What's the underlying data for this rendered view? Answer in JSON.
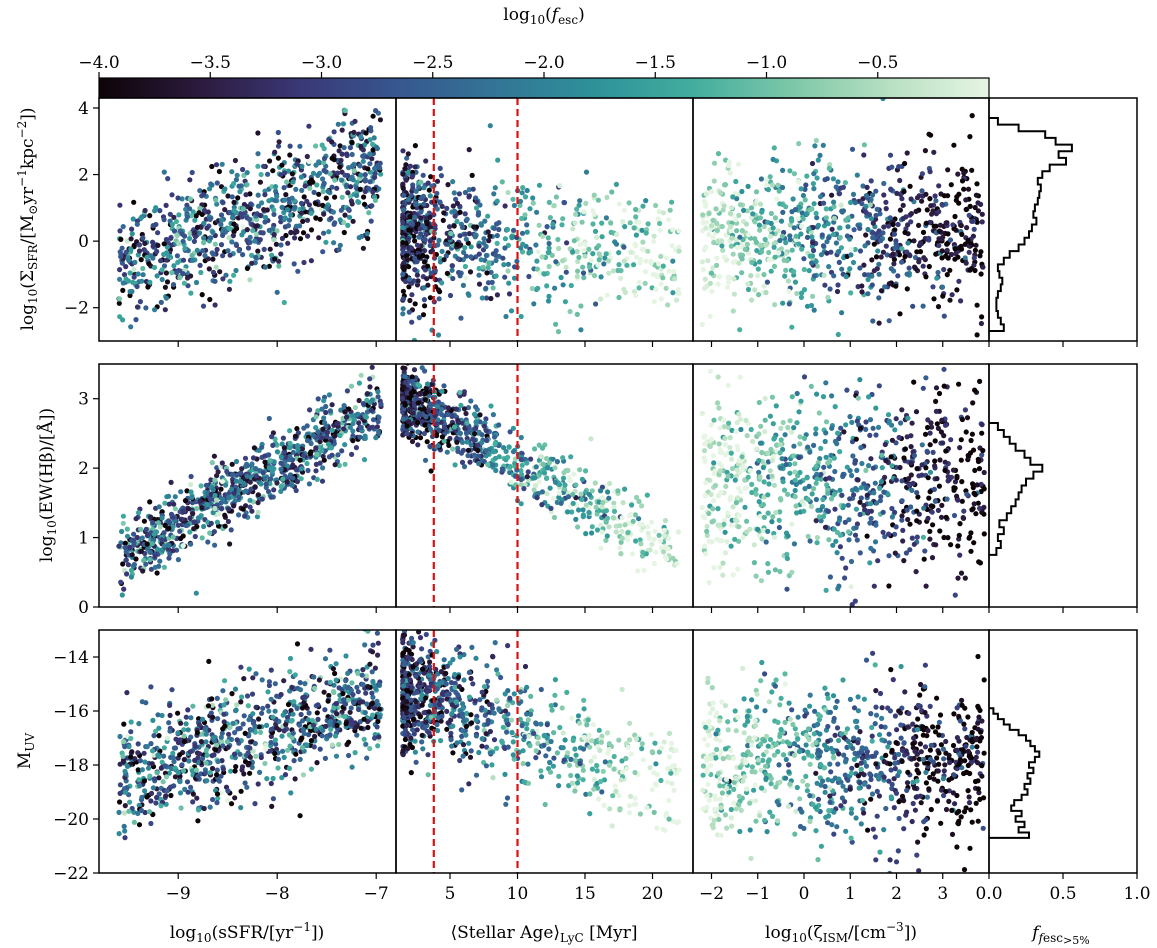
{
  "colors": {
    "colormap": [
      "#0d0408",
      "#2b1a3c",
      "#3a3775",
      "#37568f",
      "#337496",
      "#2e9199",
      "#43ad9e",
      "#7cc7a8",
      "#b8e0c2",
      "#e6f5e3"
    ],
    "ref_line": "#dd1111",
    "hist": "#000000"
  },
  "chart_data": {
    "type": "scatter",
    "colorbar": {
      "label": "log10(f_esc)",
      "range": [
        -4.0,
        0.0
      ],
      "ticks": [
        "−4.0",
        "−3.5",
        "−3.0",
        "−2.5",
        "−2.0",
        "−1.5",
        "−1.0",
        "−0.5"
      ]
    },
    "columns": [
      {
        "key": "ssfr",
        "xlabel": "log10(sSFR/[yr−1])",
        "xlim": [
          -9.8,
          -6.8
        ],
        "xticks": [
          -9,
          -8,
          -7
        ],
        "xtick_labels": [
          "−9",
          "−8",
          "−7"
        ]
      },
      {
        "key": "age",
        "xlabel": "⟨Stellar Age⟩LyC [Myr]",
        "xlim": [
          1.0,
          23.0
        ],
        "xticks": [
          5,
          10,
          15,
          20
        ],
        "xtick_labels": [
          "5",
          "10",
          "15",
          "20"
        ],
        "ref_lines": [
          3.8,
          10.0
        ]
      },
      {
        "key": "zeta",
        "xlabel": "log10(ζISM/[cm−3])",
        "xlim": [
          -2.4,
          4.0
        ],
        "xticks": [
          -2,
          -1,
          0,
          1,
          2,
          3
        ],
        "xtick_labels": [
          "−2",
          "−1",
          "0",
          "1",
          "2",
          "3"
        ]
      },
      {
        "key": "frac",
        "xlabel": "f(fesc>5%)",
        "xlim": [
          0,
          1.0
        ],
        "xticks": [
          0,
          0.5,
          1.0
        ],
        "xtick_labels": [
          "0.0",
          "0.5",
          "1.0"
        ]
      }
    ],
    "rows": [
      {
        "key": "sigma",
        "ylabel": "log10(ΣSFR/[M⊙yr−1kpc−2])",
        "ylim": [
          -3.0,
          4.3
        ],
        "yticks": [
          -2,
          0,
          2,
          4
        ],
        "ytick_labels": [
          "−2",
          "0",
          "2",
          "4"
        ],
        "ssfr": {
          "x_range": [
            -9.6,
            -6.95
          ],
          "y_base": [
            -0.8,
            2.2
          ],
          "y_spread": 2.2
        },
        "age": {
          "x_range": [
            1.5,
            22
          ],
          "y_base": [
            0.3,
            -0.5
          ],
          "y_spread": 2.4
        },
        "zeta": {
          "x_range": [
            -2.2,
            3.9
          ],
          "y_base": [
            0.2,
            0.2
          ],
          "y_spread": 2.7
        },
        "hist": {
          "bins": [
            -2.6,
            -2.4,
            -2.2,
            -2.0,
            -1.8,
            -1.6,
            -1.4,
            -1.2,
            -1.0,
            -0.8,
            -0.6,
            -0.4,
            -0.2,
            0.0,
            0.2,
            0.4,
            0.6,
            0.8,
            1.0,
            1.2,
            1.4,
            1.6,
            1.8,
            2.0,
            2.2,
            2.4,
            2.6,
            2.8,
            3.0,
            3.2,
            3.4,
            3.6
          ],
          "fractions": [
            0.1,
            0.08,
            0.06,
            0.05,
            0.05,
            0.06,
            0.08,
            0.09,
            0.07,
            0.06,
            0.1,
            0.14,
            0.2,
            0.24,
            0.27,
            0.29,
            0.32,
            0.3,
            0.31,
            0.33,
            0.34,
            0.35,
            0.33,
            0.36,
            0.41,
            0.52,
            0.47,
            0.56,
            0.45,
            0.38,
            0.2,
            0.06
          ]
        }
      },
      {
        "key": "ew",
        "ylabel": "log10(EW(Hβ)/[Å])",
        "ylim": [
          0.0,
          3.5
        ],
        "yticks": [
          0,
          1,
          2,
          3
        ],
        "ytick_labels": [
          "0",
          "1",
          "2",
          "3"
        ],
        "ssfr": {
          "x_range": [
            -9.6,
            -6.95
          ],
          "y_base": [
            0.7,
            2.9
          ],
          "y_spread": 0.6
        },
        "age": {
          "x_range": [
            1.5,
            22
          ],
          "y_base": [
            3.0,
            0.8
          ],
          "y_spread": 0.6
        },
        "zeta": {
          "x_range": [
            -2.2,
            3.9
          ],
          "y_base": [
            1.8,
            1.8
          ],
          "y_spread": 1.6
        },
        "hist": {
          "bins": [
            0.8,
            0.9,
            1.0,
            1.1,
            1.2,
            1.3,
            1.4,
            1.5,
            1.6,
            1.7,
            1.8,
            1.9,
            2.0,
            2.1,
            2.2,
            2.3,
            2.4,
            2.5,
            2.6
          ],
          "fractions": [
            0.05,
            0.08,
            0.06,
            0.1,
            0.07,
            0.12,
            0.15,
            0.18,
            0.2,
            0.22,
            0.25,
            0.3,
            0.36,
            0.28,
            0.24,
            0.18,
            0.14,
            0.1,
            0.06
          ]
        }
      },
      {
        "key": "muv",
        "ylabel": "MUV",
        "ylim": [
          -22.0,
          -13.0
        ],
        "yticks": [
          -22,
          -20,
          -18,
          -16,
          -14
        ],
        "ytick_labels": [
          "−22",
          "−20",
          "−18",
          "−16",
          "−14"
        ],
        "ssfr": {
          "x_range": [
            -9.6,
            -6.95
          ],
          "y_base": [
            -18.5,
            -15.5
          ],
          "y_spread": 2.6
        },
        "age": {
          "x_range": [
            1.5,
            22
          ],
          "y_base": [
            -15.2,
            -18.8
          ],
          "y_spread": 2.6
        },
        "zeta": {
          "x_range": [
            -2.2,
            3.9
          ],
          "y_base": [
            -17.8,
            -17.8
          ],
          "y_spread": 3.5
        },
        "hist": {
          "bins": [
            -20.6,
            -20.4,
            -20.2,
            -20.0,
            -19.8,
            -19.6,
            -19.4,
            -19.2,
            -19.0,
            -18.8,
            -18.6,
            -18.4,
            -18.2,
            -18.0,
            -17.8,
            -17.6,
            -17.4,
            -17.2,
            -17.0,
            -16.8,
            -16.6,
            -16.4,
            -16.2,
            -16.0
          ],
          "fractions": [
            0.27,
            0.2,
            0.24,
            0.18,
            0.22,
            0.15,
            0.17,
            0.22,
            0.26,
            0.24,
            0.28,
            0.26,
            0.3,
            0.27,
            0.31,
            0.34,
            0.31,
            0.28,
            0.25,
            0.2,
            0.14,
            0.1,
            0.06,
            0.03
          ]
        }
      }
    ]
  }
}
